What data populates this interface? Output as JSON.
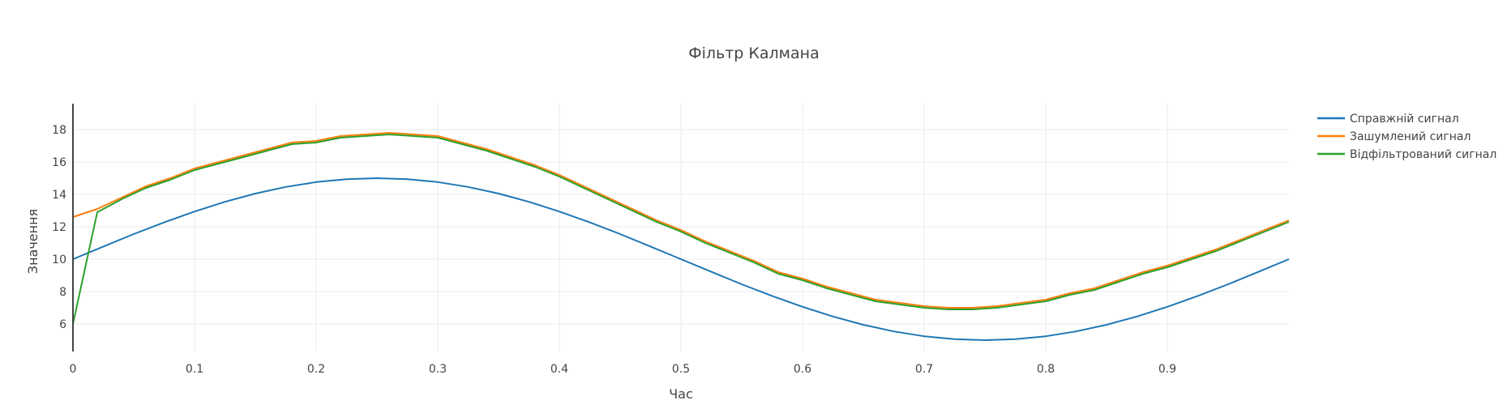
{
  "chart_data": {
    "type": "line",
    "title": "Фільтр Калмана",
    "xlabel": "Час",
    "ylabel": "Значення",
    "xlim": [
      0,
      1
    ],
    "ylim": [
      4.3,
      19.6
    ],
    "xticks": [
      0,
      0.1,
      0.2,
      0.3,
      0.4,
      0.5,
      0.6,
      0.7,
      0.8,
      0.9
    ],
    "xtick_labels": [
      "0",
      "0.1",
      "0.2",
      "0.3",
      "0.4",
      "0.5",
      "0.6",
      "0.7",
      "0.8",
      "0.9"
    ],
    "yticks": [
      6,
      8,
      10,
      12,
      14,
      16,
      18
    ],
    "ytick_labels": [
      "6",
      "8",
      "10",
      "12",
      "14",
      "16",
      "18"
    ],
    "grid": true,
    "legend_position": "top-right",
    "series": [
      {
        "name": "Справжній сигнал",
        "color": "#1f77b4",
        "x": [
          0,
          0.025,
          0.05,
          0.075,
          0.1,
          0.125,
          0.15,
          0.175,
          0.2,
          0.225,
          0.25,
          0.275,
          0.3,
          0.325,
          0.35,
          0.375,
          0.4,
          0.425,
          0.45,
          0.475,
          0.5,
          0.525,
          0.55,
          0.575,
          0.6,
          0.625,
          0.65,
          0.675,
          0.7,
          0.725,
          0.75,
          0.775,
          0.8,
          0.825,
          0.85,
          0.875,
          0.9,
          0.925,
          0.95,
          0.975,
          1.0
        ],
        "y": [
          10.0,
          10.78,
          11.55,
          12.27,
          12.94,
          13.54,
          14.05,
          14.46,
          14.76,
          14.94,
          15.0,
          14.94,
          14.76,
          14.46,
          14.05,
          13.54,
          12.94,
          12.27,
          11.55,
          10.78,
          10.0,
          9.22,
          8.45,
          7.73,
          7.06,
          6.46,
          5.95,
          5.54,
          5.24,
          5.06,
          5.0,
          5.06,
          5.24,
          5.54,
          5.95,
          6.46,
          7.06,
          7.73,
          8.45,
          9.22,
          10.0
        ]
      },
      {
        "name": "Зашумлений сигнал",
        "color": "#ff7f0e",
        "x": [
          0,
          0.02,
          0.04,
          0.06,
          0.08,
          0.1,
          0.12,
          0.14,
          0.16,
          0.18,
          0.2,
          0.22,
          0.24,
          0.26,
          0.28,
          0.3,
          0.32,
          0.34,
          0.36,
          0.38,
          0.4,
          0.42,
          0.44,
          0.46,
          0.48,
          0.5,
          0.52,
          0.54,
          0.56,
          0.58,
          0.6,
          0.62,
          0.64,
          0.66,
          0.68,
          0.7,
          0.72,
          0.74,
          0.76,
          0.78,
          0.8,
          0.82,
          0.84,
          0.86,
          0.88,
          0.9,
          0.92,
          0.94,
          0.96,
          0.98,
          1.0
        ],
        "y": [
          12.6,
          13.1,
          13.8,
          14.5,
          15.0,
          15.6,
          16.0,
          16.4,
          16.8,
          17.2,
          17.3,
          17.6,
          17.7,
          17.8,
          17.7,
          17.6,
          17.2,
          16.8,
          16.3,
          15.8,
          15.2,
          14.5,
          13.8,
          13.1,
          12.4,
          11.8,
          11.1,
          10.5,
          9.9,
          9.2,
          8.8,
          8.3,
          7.9,
          7.5,
          7.3,
          7.1,
          7.0,
          7.0,
          7.1,
          7.3,
          7.5,
          7.9,
          8.2,
          8.7,
          9.2,
          9.6,
          10.1,
          10.6,
          11.2,
          11.8,
          12.4
        ]
      },
      {
        "name": "Відфільтрований сигнал",
        "color": "#2ca02c",
        "x": [
          0,
          0.02,
          0.04,
          0.06,
          0.08,
          0.1,
          0.12,
          0.14,
          0.16,
          0.18,
          0.2,
          0.22,
          0.24,
          0.26,
          0.28,
          0.3,
          0.32,
          0.34,
          0.36,
          0.38,
          0.4,
          0.42,
          0.44,
          0.46,
          0.48,
          0.5,
          0.52,
          0.54,
          0.56,
          0.58,
          0.6,
          0.62,
          0.64,
          0.66,
          0.68,
          0.7,
          0.72,
          0.74,
          0.76,
          0.78,
          0.8,
          0.82,
          0.84,
          0.86,
          0.88,
          0.9,
          0.92,
          0.94,
          0.96,
          0.98,
          1.0
        ],
        "y": [
          6.0,
          12.9,
          13.7,
          14.4,
          14.9,
          15.5,
          15.9,
          16.3,
          16.7,
          17.1,
          17.2,
          17.5,
          17.6,
          17.7,
          17.6,
          17.5,
          17.1,
          16.7,
          16.2,
          15.7,
          15.1,
          14.4,
          13.7,
          13.0,
          12.3,
          11.7,
          11.0,
          10.4,
          9.8,
          9.1,
          8.7,
          8.2,
          7.8,
          7.4,
          7.2,
          7.0,
          6.9,
          6.9,
          7.0,
          7.2,
          7.4,
          7.8,
          8.1,
          8.6,
          9.1,
          9.5,
          10.0,
          10.5,
          11.1,
          11.7,
          12.3
        ]
      }
    ]
  }
}
